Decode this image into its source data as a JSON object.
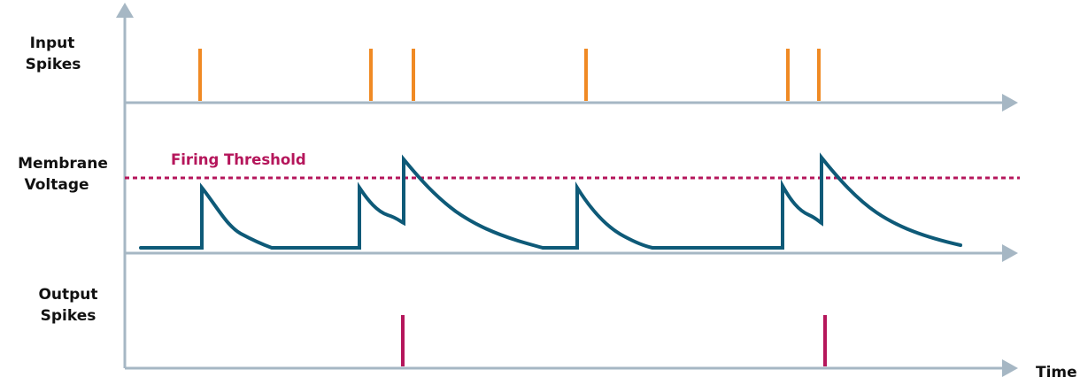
{
  "labels": {
    "input_line1": "Input",
    "input_line2": "Spikes",
    "membrane_line1": "Membrane",
    "membrane_line2": "Voltage",
    "output_line1": "Output",
    "output_line2": "Spikes",
    "threshold": "Firing Threshold",
    "time": "Time"
  },
  "colors": {
    "axis": "#a6b7c4",
    "input_spike": "#f08a24",
    "membrane_trace": "#0e5a78",
    "threshold": "#b5165b",
    "output_spike": "#b5165b",
    "label_text": "#111111"
  },
  "icons": {
    "axis_arrowheads": "triangle-arrow-icon"
  }
}
